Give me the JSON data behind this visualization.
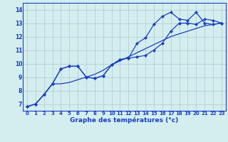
{
  "x": [
    0,
    1,
    2,
    3,
    4,
    5,
    6,
    7,
    8,
    9,
    10,
    11,
    12,
    13,
    14,
    15,
    16,
    17,
    18,
    19,
    20,
    21,
    22,
    23
  ],
  "line1": [
    6.8,
    7.0,
    7.7,
    8.5,
    9.6,
    9.8,
    9.8,
    9.0,
    8.9,
    9.1,
    9.9,
    10.3,
    10.4,
    10.5,
    10.6,
    11.0,
    11.5,
    12.4,
    13.0,
    13.0,
    12.9,
    13.3,
    13.2,
    13.0
  ],
  "line2": [
    6.8,
    7.0,
    7.7,
    8.5,
    9.6,
    9.8,
    9.8,
    9.0,
    8.9,
    9.1,
    9.9,
    10.3,
    10.4,
    11.5,
    11.9,
    12.9,
    13.5,
    13.8,
    13.3,
    13.2,
    13.8,
    13.0,
    12.9,
    13.0
  ],
  "line3": [
    6.8,
    7.0,
    7.7,
    8.5,
    8.5,
    8.6,
    8.8,
    9.0,
    9.2,
    9.5,
    9.9,
    10.2,
    10.5,
    10.8,
    11.1,
    11.4,
    11.7,
    12.0,
    12.2,
    12.4,
    12.6,
    12.8,
    12.9,
    13.0
  ],
  "ylim": [
    6.5,
    14.5
  ],
  "yticks": [
    7,
    8,
    9,
    10,
    11,
    12,
    13,
    14
  ],
  "xtick_labels": [
    "0",
    "1",
    "2",
    "3",
    "4",
    "5",
    "6",
    "7",
    "8",
    "9",
    "10",
    "11",
    "12",
    "13",
    "14",
    "15",
    "16",
    "17",
    "18",
    "19",
    "20",
    "21",
    "22",
    "23"
  ],
  "xlabel": "Graphe des températures (°c)",
  "line_color": "#1a3fbf",
  "bg_color": "#d4eef0",
  "grid_color": "#b0c8cc",
  "marker": "D",
  "markersize": 2.2,
  "linewidth": 0.9,
  "tick_fontsize": 5.0,
  "xlabel_fontsize": 6.5
}
